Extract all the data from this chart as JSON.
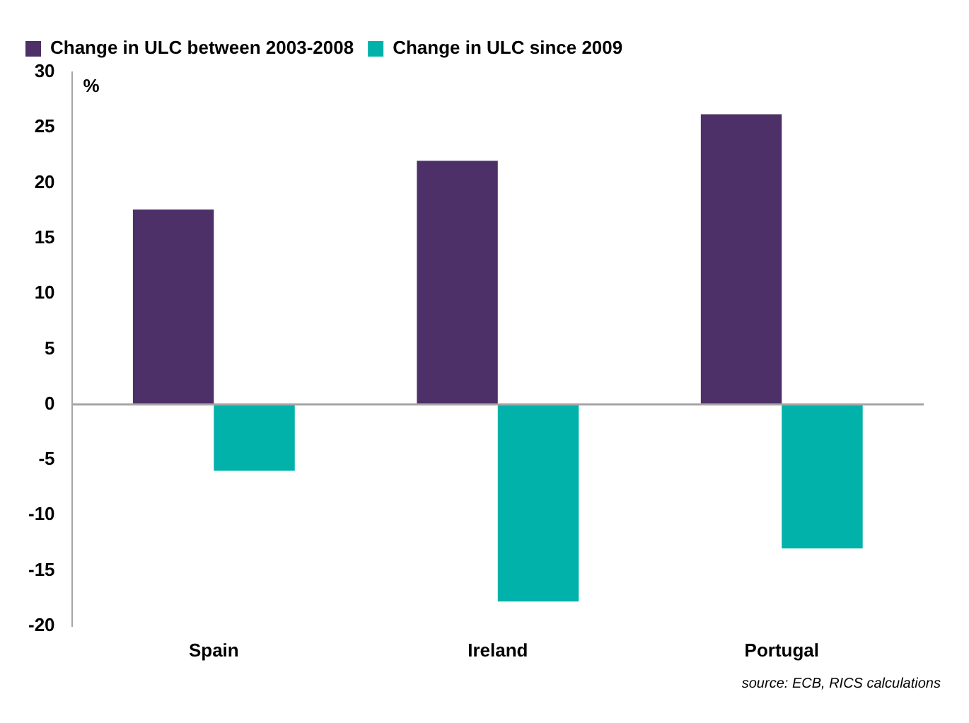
{
  "chart_data": {
    "type": "bar",
    "ylabel": "%",
    "categories": [
      "Spain",
      "Ireland",
      "Portugal"
    ],
    "series": [
      {
        "name": "Change in ULC between 2003-2008",
        "color": "#4e3068",
        "values": [
          17.6,
          22.0,
          26.2
        ]
      },
      {
        "name": "Change in ULC since 2009",
        "color": "#00b2a9",
        "values": [
          -6.0,
          -17.8,
          -13.0
        ]
      }
    ],
    "ylim": [
      -20,
      30
    ],
    "yticks": [
      -20,
      -15,
      -10,
      -5,
      0,
      5,
      10,
      15,
      20,
      25,
      30
    ],
    "ref_lines": [
      {
        "axis": "y",
        "value": 0,
        "color": "#a6a6a6"
      }
    ],
    "grid": false,
    "legend": "top left",
    "annotations": [
      "source: ECB, RICS calculations"
    ]
  }
}
